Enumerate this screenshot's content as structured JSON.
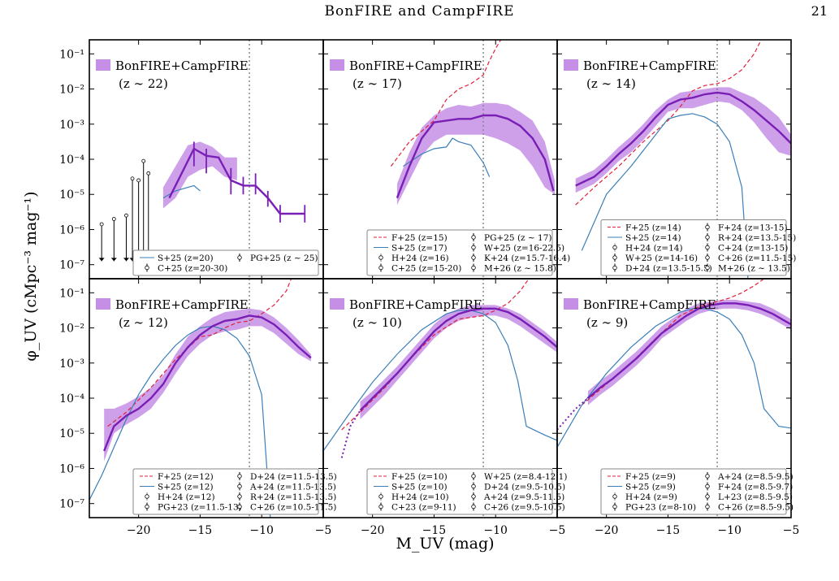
{
  "header": {
    "running_title": "BonFIRE and CampFIRE",
    "page_number": "21"
  },
  "caption_fragment": "",
  "colors": {
    "model_fill": "#c58fe6",
    "model_line": "#7a1fb5",
    "dashed": "#e0213b",
    "blue": "#3b7fb8",
    "obs": "#000000",
    "grey_obs": "#7d7d7d"
  },
  "axes": {
    "xlabel": "M_UV (mag)",
    "ylabel": "φ_UV (cMpc⁻³ mag⁻¹)",
    "x_ticks": [
      "−20",
      "−15",
      "−10",
      "−5"
    ],
    "y_ticks": [
      "10⁻¹",
      "10⁻²",
      "10⁻³",
      "10⁻⁴",
      "10⁻⁵",
      "10⁻⁶",
      "10⁻⁷"
    ]
  },
  "chart_data": [
    {
      "type": "line",
      "panel": "z~22",
      "title": "BonFIRE+CampFIRE",
      "subtitle": "(z ∼ 22)",
      "xlim": [
        -24,
        -5
      ],
      "ylim_log10": [
        -7.4,
        -0.6
      ],
      "vline_x": -11,
      "model_median": {
        "x": [
          -17.5,
          -16.5,
          -15.5,
          -14.5,
          -13.5,
          -12.5,
          -11.5,
          -10.5,
          -9.5,
          -8.5,
          -7.5,
          -6.5
        ],
        "log_phi": [
          -5.1,
          -4.4,
          -3.7,
          -3.9,
          -3.95,
          -4.6,
          -4.75,
          -4.75,
          -5.1,
          -5.55,
          -5.55,
          -5.55
        ]
      },
      "model_band": {
        "x": [
          -18,
          -17,
          -16,
          -15,
          -14,
          -13,
          -12
        ],
        "log_lo": [
          -5.4,
          -5.1,
          -4.5,
          -4.3,
          -4.2,
          -4.5,
          -4.6
        ],
        "log_hi": [
          -4.8,
          -4.2,
          -3.6,
          -3.5,
          -3.65,
          -3.95,
          -3.95
        ]
      },
      "model_errors": {
        "x": [
          -15.5,
          -14.5,
          -12.5,
          -11.5,
          -10.5,
          -9.5,
          -8.5,
          -6.5
        ],
        "log_lo": [
          -4.2,
          -4.4,
          -5.0,
          -5.0,
          -5.0,
          -5.35,
          -5.8,
          -5.8
        ],
        "log_hi": [
          -3.5,
          -3.7,
          -4.25,
          -4.5,
          -4.4,
          -4.9,
          -5.3,
          -5.3
        ]
      },
      "curves": [
        {
          "label": "S+25 (z=20)",
          "style": "blue",
          "x": [
            -18,
            -17,
            -16,
            -15.5,
            -15
          ],
          "log_phi": [
            -5.1,
            -4.9,
            -4.8,
            -4.75,
            -4.9
          ]
        }
      ],
      "upper_limits": {
        "x": [
          -23,
          -22,
          -21,
          -20.5,
          -20,
          -19.6,
          -19.2
        ],
        "log_phi": [
          -5.85,
          -5.7,
          -5.6,
          -4.55,
          -4.6,
          -4.05,
          -4.4
        ]
      },
      "legend": [
        "S+25 (z=20)",
        "PG+25 (z ∼ 25)",
        "C+25 (z=20-30)"
      ]
    },
    {
      "type": "line",
      "panel": "z~17",
      "title": "BonFIRE+CampFIRE",
      "subtitle": "(z ∼ 17)",
      "xlim": [
        -24,
        -5
      ],
      "ylim_log10": [
        -7.4,
        -0.6
      ],
      "vline_x": -11,
      "model_median": {
        "x": [
          -18,
          -17,
          -16,
          -15,
          -14,
          -13,
          -12,
          -11,
          -10,
          -9,
          -8,
          -7,
          -6,
          -5.3
        ],
        "log_phi": [
          -5.1,
          -4.2,
          -3.4,
          -2.95,
          -2.9,
          -2.85,
          -2.85,
          -2.75,
          -2.75,
          -2.85,
          -3.05,
          -3.4,
          -4.0,
          -4.9
        ]
      },
      "model_band": {
        "x": [
          -18,
          -17,
          -16,
          -15,
          -14,
          -13,
          -12,
          -11,
          -10,
          -9,
          -8,
          -7,
          -6,
          -5.2
        ],
        "log_lo": [
          -5.3,
          -4.6,
          -3.9,
          -3.5,
          -3.3,
          -3.3,
          -3.3,
          -3.3,
          -3.4,
          -3.55,
          -3.75,
          -4.2,
          -4.8,
          -5.0
        ],
        "log_hi": [
          -4.7,
          -3.8,
          -3.1,
          -2.75,
          -2.55,
          -2.45,
          -2.5,
          -2.4,
          -2.4,
          -2.45,
          -2.65,
          -2.9,
          -3.5,
          -4.6
        ]
      },
      "curves": [
        {
          "label": "F+25 (z=15)",
          "style": "dashed",
          "x": [
            -18.5,
            -17,
            -16,
            -15,
            -14,
            -13,
            -12,
            -11,
            -10.5,
            -10,
            -9.5
          ],
          "log_phi": [
            -4.2,
            -3.5,
            -3.2,
            -2.9,
            -2.3,
            -2.0,
            -1.85,
            -1.6,
            -1.2,
            -0.85,
            -0.55
          ]
        },
        {
          "label": "S+25 (z=17)",
          "style": "blue",
          "x": [
            -17.5,
            -16,
            -15,
            -14,
            -13.5,
            -13,
            -12,
            -11,
            -10.5
          ],
          "log_phi": [
            -4.2,
            -3.85,
            -3.7,
            -3.65,
            -3.4,
            -3.5,
            -3.6,
            -4.1,
            -4.5
          ]
        }
      ],
      "legend": [
        "F+25 (z=15)",
        "PG+25 (z ∼ 17)",
        "S+25 (z=17)",
        "W+25 (z=16-22.5)",
        "H+24 (z=16)",
        "K+24 (z=15.7-16.4)",
        "C+25 (z=15-20)",
        "M+26 (z ∼ 15.8)"
      ]
    },
    {
      "type": "line",
      "panel": "z~14",
      "title": "BonFIRE+CampFIRE",
      "subtitle": "(z ∼ 14)",
      "xlim": [
        -24,
        -5
      ],
      "ylim_log10": [
        -7.4,
        -0.6
      ],
      "vline_x": -11,
      "model_median": {
        "x": [
          -22.5,
          -21,
          -20,
          -19,
          -18,
          -17,
          -16,
          -15,
          -14,
          -13,
          -12,
          -11,
          -10,
          -9,
          -8,
          -7,
          -6,
          -5
        ],
        "log_phi": [
          -4.75,
          -4.5,
          -4.2,
          -3.85,
          -3.55,
          -3.2,
          -2.8,
          -2.45,
          -2.3,
          -2.25,
          -2.15,
          -2.1,
          -2.15,
          -2.35,
          -2.6,
          -2.9,
          -3.2,
          -3.55
        ]
      },
      "model_band": {
        "x": [
          -22.5,
          -21,
          -20,
          -19,
          -18,
          -17,
          -16,
          -15,
          -14,
          -13,
          -12,
          -11,
          -10,
          -9,
          -8,
          -7,
          -6,
          -5
        ],
        "log_lo": [
          -4.95,
          -4.7,
          -4.4,
          -4.05,
          -3.8,
          -3.45,
          -3.05,
          -2.65,
          -2.55,
          -2.55,
          -2.45,
          -2.35,
          -2.4,
          -2.6,
          -2.95,
          -3.4,
          -3.8,
          -3.9
        ],
        "log_hi": [
          -4.55,
          -4.3,
          -4.0,
          -3.65,
          -3.35,
          -3.0,
          -2.6,
          -2.3,
          -2.1,
          -2.05,
          -2.0,
          -1.95,
          -1.95,
          -2.1,
          -2.25,
          -2.5,
          -2.8,
          -3.3
        ]
      },
      "curves": [
        {
          "label": "F+25 (z=14)",
          "style": "dashed",
          "x": [
            -22.5,
            -21,
            -19,
            -17,
            -15,
            -14,
            -13,
            -12,
            -11,
            -10,
            -9,
            -8,
            -7.5
          ],
          "log_phi": [
            -5.3,
            -4.8,
            -4.2,
            -3.5,
            -2.9,
            -2.5,
            -2.05,
            -1.9,
            -1.85,
            -1.7,
            -1.45,
            -1.0,
            -0.65
          ]
        },
        {
          "label": "S+25 (z=14)",
          "style": "blue",
          "x": [
            -22,
            -21,
            -20,
            -18,
            -16,
            -15,
            -14,
            -13,
            -12,
            -11,
            -10,
            -9,
            -8.5
          ],
          "log_phi": [
            -6.6,
            -5.8,
            -5.0,
            -4.2,
            -3.3,
            -2.85,
            -2.75,
            -2.7,
            -2.8,
            -3.0,
            -3.5,
            -4.8,
            -7.4
          ]
        }
      ],
      "legend": [
        "F+25 (z=14)",
        "F+24 (z=13-15)",
        "S+25 (z=14)",
        "R+24 (z=13.5-15)",
        "H+24 (z=14)",
        "C+24 (z=13-15)",
        "W+25 (z=14-16)",
        "C+26 (z=11.5-15)",
        "D+24 (z=13.5-15.5)",
        "M+26 (z ∼ 13.5)"
      ]
    },
    {
      "type": "line",
      "panel": "z~12",
      "title": "BonFIRE+CampFIRE",
      "subtitle": "(z ∼ 12)",
      "xlim": [
        -24,
        -5
      ],
      "ylim_log10": [
        -7.4,
        -0.6
      ],
      "vline_x": -11,
      "model_median": {
        "x": [
          -22.8,
          -22,
          -21,
          -20,
          -19,
          -18,
          -17,
          -16,
          -15,
          -14,
          -13,
          -12,
          -11,
          -10,
          -9,
          -8,
          -7,
          -6
        ],
        "log_phi": [
          -5.5,
          -4.8,
          -4.5,
          -4.3,
          -4.0,
          -3.6,
          -3.0,
          -2.55,
          -2.2,
          -1.95,
          -1.8,
          -1.75,
          -1.65,
          -1.7,
          -1.9,
          -2.2,
          -2.55,
          -2.85
        ]
      },
      "model_band": {
        "x": [
          -22.8,
          -22,
          -21,
          -20,
          -19,
          -18,
          -17,
          -16,
          -15,
          -14,
          -13,
          -12,
          -11,
          -10,
          -9,
          -8,
          -7,
          -6
        ],
        "log_lo": [
          -5.8,
          -5.0,
          -4.75,
          -4.55,
          -4.3,
          -3.85,
          -3.3,
          -2.8,
          -2.45,
          -2.2,
          -2.1,
          -2.05,
          -1.95,
          -1.95,
          -2.15,
          -2.45,
          -2.75,
          -2.95
        ],
        "log_hi": [
          -4.3,
          -4.3,
          -4.15,
          -3.95,
          -3.7,
          -3.35,
          -2.75,
          -2.25,
          -1.95,
          -1.7,
          -1.55,
          -1.5,
          -1.45,
          -1.5,
          -1.7,
          -2.0,
          -2.35,
          -2.75
        ]
      },
      "curves": [
        {
          "label": "F+25 (z=12)",
          "style": "dashed",
          "x": [
            -22.5,
            -21,
            -19,
            -17,
            -15,
            -14,
            -13,
            -12,
            -11,
            -10,
            -9,
            -8,
            -7.6
          ],
          "log_phi": [
            -4.8,
            -4.4,
            -3.7,
            -2.9,
            -2.25,
            -2.2,
            -2.0,
            -1.85,
            -1.8,
            -1.6,
            -1.35,
            -0.95,
            -0.6
          ]
        },
        {
          "label": "S+25 (z=12)",
          "style": "blue",
          "x": [
            -24,
            -23,
            -22,
            -21,
            -20,
            -19,
            -18,
            -17,
            -16,
            -15,
            -14,
            -13,
            -12,
            -11,
            -10,
            -9.3
          ],
          "log_phi": [
            -6.9,
            -6.2,
            -5.4,
            -4.6,
            -3.9,
            -3.35,
            -2.9,
            -2.5,
            -2.2,
            -2.0,
            -1.95,
            -2.05,
            -2.3,
            -2.8,
            -3.9,
            -7.4
          ]
        }
      ],
      "legend": [
        "F+25 (z=12)",
        "D+24 (z=11.5-13.5)",
        "S+25 (z=12)",
        "A+24 (z=11.5-13.5)",
        "H+24 (z=12)",
        "R+24 (z=11.5-13.5)",
        "PG+23 (z=11.5-13)",
        "C+26 (z=10.5-11.5)"
      ]
    },
    {
      "type": "line",
      "panel": "z~10",
      "title": "BonFIRE+CampFIRE",
      "subtitle": "(z ∼ 10)",
      "xlim": [
        -24,
        -5
      ],
      "ylim_log10": [
        -7.4,
        -0.6
      ],
      "vline_x": -11,
      "model_median": {
        "x": [
          -21,
          -20,
          -19,
          -18,
          -17,
          -16,
          -15,
          -14,
          -13,
          -12,
          -11,
          -10,
          -9,
          -8,
          -7,
          -6,
          -5
        ],
        "log_phi": [
          -4.35,
          -4.0,
          -3.65,
          -3.3,
          -2.9,
          -2.5,
          -2.1,
          -1.8,
          -1.6,
          -1.5,
          -1.45,
          -1.45,
          -1.55,
          -1.75,
          -2.0,
          -2.25,
          -2.55
        ]
      },
      "model_band": {
        "x": [
          -21,
          -20,
          -19,
          -18,
          -17,
          -16,
          -15,
          -14,
          -13,
          -12,
          -11,
          -10,
          -9,
          -8,
          -7,
          -6,
          -5
        ],
        "log_lo": [
          -4.6,
          -4.25,
          -3.9,
          -3.5,
          -3.1,
          -2.7,
          -2.3,
          -2.0,
          -1.8,
          -1.7,
          -1.65,
          -1.65,
          -1.75,
          -1.95,
          -2.2,
          -2.45,
          -2.7
        ],
        "log_hi": [
          -4.1,
          -3.8,
          -3.45,
          -3.1,
          -2.7,
          -2.3,
          -1.9,
          -1.6,
          -1.45,
          -1.35,
          -1.35,
          -1.35,
          -1.45,
          -1.6,
          -1.85,
          -2.1,
          -2.4
        ]
      },
      "model_dotted": {
        "x": [
          -22.5,
          -21.8,
          -21
        ],
        "log_phi": [
          -5.7,
          -4.8,
          -4.35
        ]
      },
      "curves": [
        {
          "label": "F+25 (z=10)",
          "style": "dashed",
          "x": [
            -22.5,
            -21,
            -19,
            -17,
            -15,
            -13,
            -12,
            -11,
            -10,
            -9,
            -8,
            -7.3
          ],
          "log_phi": [
            -4.9,
            -4.4,
            -3.7,
            -2.9,
            -2.2,
            -1.75,
            -1.7,
            -1.65,
            -1.5,
            -1.3,
            -0.95,
            -0.6
          ]
        },
        {
          "label": "S+25 (z=10)",
          "style": "blue",
          "x": [
            -24,
            -22,
            -20,
            -18,
            -16,
            -14,
            -13,
            -12,
            -11,
            -10,
            -9,
            -8.2,
            -7.5,
            -6,
            -5
          ],
          "log_phi": [
            -5.5,
            -4.5,
            -3.55,
            -2.75,
            -2.05,
            -1.6,
            -1.5,
            -1.5,
            -1.6,
            -1.85,
            -2.5,
            -3.5,
            -4.8,
            -5.05,
            -5.2
          ]
        }
      ],
      "legend": [
        "F+25 (z=10)",
        "W+25 (z=8.4-12.1)",
        "S+25 (z=10)",
        "D+24 (z=9.5-10.5)",
        "H+24 (z=10)",
        "A+24 (z=9.5-11.5)",
        "C+23 (z=9-11)",
        "C+26 (z=9.5-10.5)"
      ]
    },
    {
      "type": "line",
      "panel": "z~9",
      "title": "BonFIRE+CampFIRE",
      "subtitle": "(z ∼ 9)",
      "xlim": [
        -24,
        -5
      ],
      "ylim_log10": [
        -7.4,
        -0.6
      ],
      "vline_x": -11,
      "model_median": {
        "x": [
          -21.5,
          -20.5,
          -19.5,
          -18.5,
          -17.5,
          -16.5,
          -15.5,
          -14.5,
          -13.5,
          -12.5,
          -11.5,
          -10.5,
          -9.5,
          -8.5,
          -7.5,
          -6.5,
          -5.5,
          -5
        ],
        "log_phi": [
          -4.0,
          -3.7,
          -3.45,
          -3.15,
          -2.85,
          -2.5,
          -2.15,
          -1.9,
          -1.65,
          -1.45,
          -1.35,
          -1.3,
          -1.3,
          -1.35,
          -1.45,
          -1.6,
          -1.8,
          -1.9
        ]
      },
      "model_band": {
        "x": [
          -21.5,
          -20.5,
          -19.5,
          -18.5,
          -17.5,
          -16.5,
          -15.5,
          -14.5,
          -13.5,
          -12.5,
          -11.5,
          -10.5,
          -9.5,
          -8.5,
          -7.5,
          -6.5,
          -5.5,
          -5
        ],
        "log_lo": [
          -4.2,
          -3.9,
          -3.65,
          -3.35,
          -3.05,
          -2.7,
          -2.3,
          -2.05,
          -1.8,
          -1.6,
          -1.5,
          -1.45,
          -1.45,
          -1.5,
          -1.6,
          -1.75,
          -1.95,
          -2.05
        ],
        "log_hi": [
          -3.8,
          -3.5,
          -3.25,
          -2.95,
          -2.65,
          -2.3,
          -1.95,
          -1.7,
          -1.45,
          -1.3,
          -1.25,
          -1.2,
          -1.2,
          -1.25,
          -1.3,
          -1.45,
          -1.65,
          -1.75
        ]
      },
      "model_dotted": {
        "x": [
          -24,
          -22.5,
          -21.5
        ],
        "log_phi": [
          -4.9,
          -4.3,
          -4.0
        ]
      },
      "curves": [
        {
          "label": "F+25 (z=9)",
          "style": "dashed",
          "x": [
            -22,
            -20,
            -18,
            -16,
            -14,
            -12.5,
            -11,
            -10,
            -9,
            -8,
            -7.2
          ],
          "log_phi": [
            -4.2,
            -3.6,
            -3.0,
            -2.3,
            -1.65,
            -1.4,
            -1.25,
            -1.15,
            -1.0,
            -0.8,
            -0.6
          ]
        },
        {
          "label": "S+25 (z=9)",
          "style": "blue",
          "x": [
            -24,
            -22,
            -20,
            -18,
            -16,
            -14,
            -13,
            -12,
            -11,
            -10,
            -9,
            -8,
            -7.2,
            -6,
            -5
          ],
          "log_phi": [
            -5.4,
            -4.2,
            -3.3,
            -2.55,
            -1.95,
            -1.55,
            -1.45,
            -1.45,
            -1.55,
            -1.75,
            -2.2,
            -3.0,
            -4.3,
            -4.8,
            -4.85
          ]
        }
      ],
      "legend": [
        "F+25 (z=9)",
        "A+24 (z=8.5-9.5)",
        "S+25 (z=9)",
        "F+24 (z=8.5-9.7)",
        "H+24 (z=9)",
        "L+23 (z=8.5-9.5)",
        "PG+23 (z=8-10)",
        "C+26 (z=8.5-9.5)"
      ]
    }
  ]
}
